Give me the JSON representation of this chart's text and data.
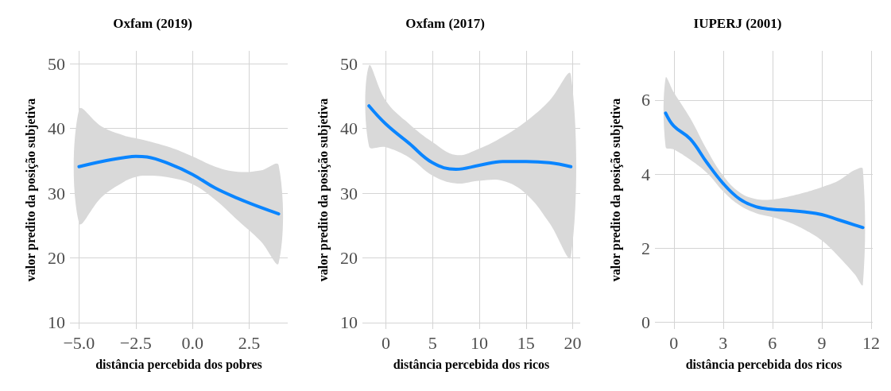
{
  "chart_data": [
    {
      "type": "line",
      "title": "Oxfam (2019)",
      "xlabel": "distância percebida dos pobres",
      "ylabel": "valor predito da posição subjetiva",
      "xlim": [
        -5.4,
        4.2
      ],
      "ylim": [
        9,
        52
      ],
      "xticks": [
        {
          "value": -5,
          "label": "−5.0"
        },
        {
          "value": -2.5,
          "label": "−2.5"
        },
        {
          "value": 0,
          "label": "0.0"
        },
        {
          "value": 2.5,
          "label": "2.5"
        }
      ],
      "yticks": [
        10,
        20,
        30,
        40,
        50
      ],
      "grid": true,
      "marker": "none",
      "series": [
        {
          "color": "#0a85ff",
          "x": [
            -5,
            -4,
            -3,
            -2.5,
            -2,
            -1,
            0,
            1,
            2,
            3,
            3.8
          ],
          "values": [
            34.1,
            34.9,
            35.5,
            35.7,
            35.6,
            34.5,
            32.9,
            30.8,
            29.2,
            27.8,
            26.8
          ],
          "upper": [
            42.9,
            40.3,
            38.9,
            38.5,
            38.1,
            37.1,
            35.7,
            34.1,
            33.3,
            33.5,
            34.3
          ],
          "lower": [
            25.4,
            29.4,
            31.8,
            32.5,
            32.7,
            32.4,
            31.4,
            29.0,
            25.8,
            22.6,
            19.2
          ]
        }
      ]
    },
    {
      "type": "line",
      "title": "Oxfam (2017)",
      "xlabel": "distância percebida dos ricos",
      "ylabel": "valor predito da posição subjetiva",
      "xlim": [
        -2.5,
        20.8
      ],
      "ylim": [
        9,
        52
      ],
      "xticks": [
        0,
        5,
        10,
        15,
        20
      ],
      "yticks": [
        10,
        20,
        30,
        40,
        50
      ],
      "grid": true,
      "marker": "none",
      "series": [
        {
          "color": "#0a85ff",
          "x": [
            -1.8,
            0,
            2.5,
            5,
            7.5,
            10,
            12.5,
            15,
            17.5,
            19.8
          ],
          "values": [
            43.5,
            40.7,
            37.7,
            34.7,
            33.7,
            34.3,
            34.9,
            34.9,
            34.7,
            34.1
          ],
          "upper": [
            49.7,
            44.3,
            40.7,
            37.9,
            35.9,
            36.9,
            38.7,
            41.1,
            44.3,
            48.3
          ],
          "lower": [
            37.3,
            37.1,
            35.5,
            32.7,
            31.5,
            31.9,
            31.9,
            29.9,
            25.4,
            20.2
          ]
        }
      ]
    },
    {
      "type": "line",
      "title": "IUPERJ (2001)",
      "xlabel": "distância percebida dos ricos",
      "ylabel": "valor predito da posição subjetiva",
      "xlim": [
        -1.15,
        12.1
      ],
      "ylim": [
        -0.18,
        7.33
      ],
      "xticks": [
        0,
        3,
        6,
        9,
        12
      ],
      "yticks": [
        0,
        2,
        4,
        6
      ],
      "grid": true,
      "marker": "none",
      "series": [
        {
          "color": "#0a85ff",
          "x": [
            -0.5,
            0,
            1,
            2,
            3,
            4,
            5,
            6,
            7,
            8,
            9,
            10,
            11,
            11.5
          ],
          "values": [
            5.65,
            5.3,
            4.95,
            4.32,
            3.75,
            3.33,
            3.12,
            3.05,
            3.02,
            2.98,
            2.91,
            2.77,
            2.63,
            2.56
          ],
          "upper": [
            6.6,
            6.21,
            5.51,
            4.67,
            3.96,
            3.51,
            3.33,
            3.32,
            3.4,
            3.51,
            3.65,
            3.82,
            4.11,
            4.14
          ],
          "lower": [
            4.74,
            4.67,
            4.39,
            4.04,
            3.54,
            3.16,
            2.95,
            2.84,
            2.7,
            2.49,
            2.21,
            1.79,
            1.3,
            1.02
          ]
        }
      ]
    }
  ]
}
